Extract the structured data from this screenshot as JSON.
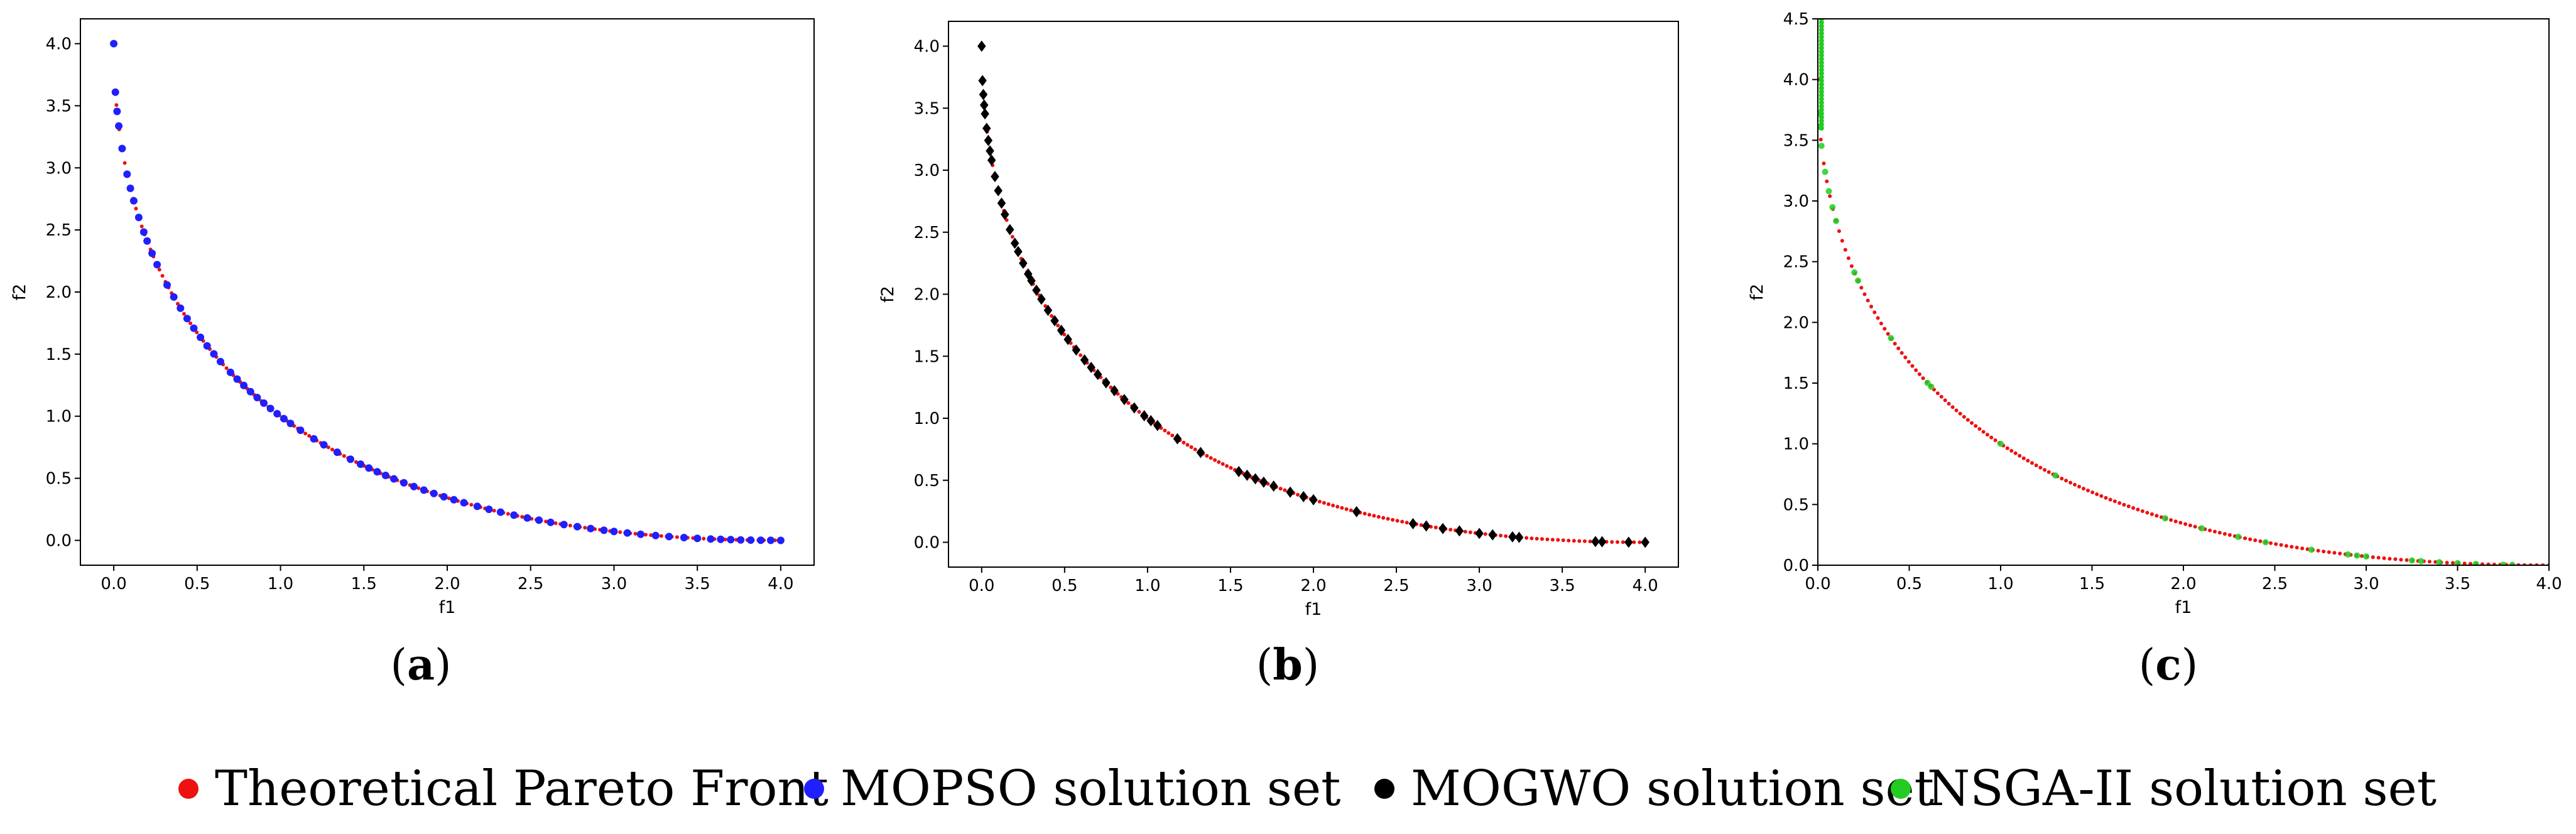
{
  "colors": {
    "theory": "#ee1111",
    "mopso": "#1f1fff",
    "mogwo": "#000000",
    "nsga": "#22cc22"
  },
  "legend": [
    {
      "label": "Theoretical Pareto Front",
      "color": "#ee1111"
    },
    {
      "label": "MOPSO solution set",
      "color": "#1f1fff"
    },
    {
      "label": "MOGWO solution set",
      "color": "#000000"
    },
    {
      "label": "NSGA-II solution set",
      "color": "#22cc22"
    }
  ],
  "chart_data": [
    {
      "type": "scatter",
      "caption_letter": "a",
      "xlabel": "f1",
      "ylabel": "f2",
      "xlim": [
        -0.2,
        4.2
      ],
      "ylim": [
        -0.2,
        4.2
      ],
      "xticks": [
        "0.0",
        "0.5",
        "1.0",
        "1.5",
        "2.0",
        "2.5",
        "3.0",
        "3.5",
        "4.0"
      ],
      "yticks": [
        "0.0",
        "0.5",
        "1.0",
        "1.5",
        "2.0",
        "2.5",
        "3.0",
        "3.5",
        "4.0"
      ],
      "grid": false,
      "series": [
        {
          "marker": "dot",
          "x": [
            0.0,
            4.0
          ]
        },
        {
          "marker": "circle",
          "x": [
            0.0,
            0.01,
            0.02,
            0.03,
            0.05,
            0.08,
            0.1,
            0.12,
            0.15,
            0.18,
            0.2,
            0.23,
            0.26,
            0.32,
            0.36,
            0.4,
            0.44,
            0.48,
            0.52,
            0.56,
            0.6,
            0.64,
            0.7,
            0.74,
            0.78,
            0.82,
            0.86,
            0.9,
            0.94,
            0.98,
            1.02,
            1.06,
            1.12,
            1.2,
            1.26,
            1.34,
            1.42,
            1.48,
            1.53,
            1.58,
            1.63,
            1.68,
            1.74,
            1.8,
            1.86,
            1.92,
            1.98,
            2.04,
            2.1,
            2.18,
            2.25,
            2.32,
            2.4,
            2.48,
            2.55,
            2.62,
            2.7,
            2.78,
            2.86,
            2.94,
            3.0,
            3.08,
            3.16,
            3.25,
            3.33,
            3.42,
            3.5,
            3.58,
            3.64,
            3.7,
            3.76,
            3.82,
            3.88,
            3.94,
            4.0
          ]
        }
      ]
    },
    {
      "type": "scatter",
      "caption_letter": "b",
      "xlabel": "f1",
      "ylabel": "f2",
      "xlim": [
        -0.2,
        4.2
      ],
      "ylim": [
        -0.2,
        4.2
      ],
      "xticks": [
        "0.0",
        "0.5",
        "1.0",
        "1.5",
        "2.0",
        "2.5",
        "3.0",
        "3.5",
        "4.0"
      ],
      "yticks": [
        "0.0",
        "0.5",
        "1.0",
        "1.5",
        "2.0",
        "2.5",
        "3.0",
        "3.5",
        "4.0"
      ],
      "grid": false,
      "series": [
        {
          "marker": "dot",
          "x": [
            0.0,
            4.0
          ]
        },
        {
          "marker": "diamond",
          "x": [
            0.0,
            0.005,
            0.01,
            0.015,
            0.02,
            0.03,
            0.04,
            0.05,
            0.06,
            0.08,
            0.1,
            0.12,
            0.14,
            0.17,
            0.2,
            0.22,
            0.25,
            0.28,
            0.3,
            0.33,
            0.36,
            0.4,
            0.44,
            0.48,
            0.52,
            0.57,
            0.62,
            0.66,
            0.7,
            0.75,
            0.8,
            0.86,
            0.92,
            0.98,
            1.02,
            1.06,
            1.18,
            1.32,
            1.55,
            1.6,
            1.65,
            1.7,
            1.76,
            1.86,
            1.94,
            2.0,
            2.26,
            2.6,
            2.68,
            2.78,
            2.88,
            3.0,
            3.08,
            3.2,
            3.24,
            3.7,
            3.74,
            3.9,
            4.0
          ]
        }
      ]
    },
    {
      "type": "scatter",
      "caption_letter": "c",
      "xlabel": "f1",
      "ylabel": "f2",
      "xlim": [
        0.0,
        4.0
      ],
      "ylim": [
        0.0,
        4.5
      ],
      "xticks": [
        "0.0",
        "0.5",
        "1.0",
        "1.5",
        "2.0",
        "2.5",
        "3.0",
        "3.5",
        "4.0"
      ],
      "yticks": [
        "0.0",
        "0.5",
        "1.0",
        "1.5",
        "2.0",
        "2.5",
        "3.0",
        "3.5",
        "4.0",
        "4.5"
      ],
      "grid": false,
      "series": [
        {
          "marker": "dot",
          "x": [
            0.0,
            4.0
          ]
        },
        {
          "marker": "circle",
          "x": [
            0.005,
            0.01,
            0.02,
            0.04,
            0.06,
            0.08,
            0.1,
            0.2,
            0.22,
            0.4,
            0.6,
            0.62,
            1.0,
            1.3,
            1.9,
            2.1,
            2.3,
            2.45,
            2.7,
            2.9,
            2.95,
            3.0,
            3.25,
            3.3,
            3.4,
            3.5,
            3.6,
            3.75,
            3.8
          ]
        }
      ]
    }
  ]
}
